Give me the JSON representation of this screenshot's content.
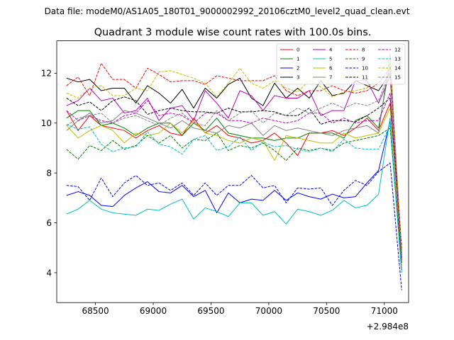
{
  "figure": {
    "suptitle": "Data file: modeM0/AS1A05_180T01_9000002992_20106cztM0_level2_quad_clean.evt",
    "title": "Quadrant 3 module wise count rates with 100.0s bins."
  },
  "chart_data": {
    "type": "line",
    "title": "Quadrant 3 module wise count rates with 100.0s bins.",
    "xlabel": "",
    "ylabel": "",
    "x_offset_label": "+2.984e8",
    "xlim": [
      68165,
      71210
    ],
    "ylim": [
      2.8,
      13.3
    ],
    "xticks": [
      68500,
      69000,
      69500,
      70000,
      70500,
      71000
    ],
    "yticks": [
      4,
      6,
      8,
      10,
      12
    ],
    "grid": false,
    "legend_position": "top-right",
    "legend_columns": 4,
    "x": [
      68250,
      68350,
      68450,
      68550,
      68650,
      68750,
      68850,
      68950,
      69050,
      69150,
      69250,
      69350,
      69450,
      69550,
      69650,
      69750,
      69850,
      69950,
      70050,
      70150,
      70250,
      70350,
      70450,
      70550,
      70650,
      70750,
      70850,
      70950,
      71050,
      71150
    ],
    "series": [
      {
        "name": "0",
        "color": "#ff0000",
        "dash": "solid",
        "values": [
          10.5,
          9.7,
          10.3,
          9.9,
          9.8,
          9.7,
          9.4,
          9.7,
          9.9,
          9.6,
          9.5,
          10.2,
          9.6,
          9.9,
          9.5,
          9.4,
          9.2,
          9.3,
          9.6,
          9.2,
          8.7,
          9.6,
          9.6,
          9.7,
          9.5,
          9.8,
          10.2,
          9.7,
          10.8,
          4.5
        ]
      },
      {
        "name": "1",
        "color": "#008000",
        "dash": "solid",
        "values": [
          10.2,
          10.5,
          10.5,
          9.9,
          10.0,
          9.8,
          9.5,
          9.8,
          10.0,
          10.0,
          9.5,
          10.0,
          9.7,
          10.2,
          9.6,
          9.5,
          9.4,
          9.4,
          9.3,
          9.4,
          9.4,
          9.6,
          9.6,
          9.6,
          9.4,
          10.1,
          10.3,
          9.8,
          12.4,
          4.6
        ]
      },
      {
        "name": "2",
        "color": "#0000ff",
        "dash": "solid",
        "values": [
          7.1,
          7.25,
          7.1,
          6.7,
          6.65,
          7.1,
          7.4,
          7.65,
          7.25,
          7.2,
          7.5,
          7.05,
          7.3,
          6.4,
          7.2,
          6.8,
          6.95,
          6.9,
          7.3,
          6.9,
          7.2,
          7.05,
          6.95,
          7.15,
          7.0,
          7.05,
          7.6,
          8.1,
          10.1,
          4.1
        ]
      },
      {
        "name": "3",
        "color": "#000000",
        "dash": "solid",
        "values": [
          11.8,
          11.65,
          11.75,
          11.3,
          11.4,
          11.4,
          10.8,
          11.5,
          11.2,
          10.8,
          11.35,
          10.6,
          11.4,
          11.0,
          11.55,
          11.8,
          11.0,
          10.7,
          11.6,
          11.0,
          11.4,
          11.0,
          11.7,
          11.1,
          11.2,
          11.7,
          11.5,
          11.3,
          12.0,
          4.9
        ]
      },
      {
        "name": "4",
        "color": "#bf00bf",
        "dash": "solid",
        "values": [
          10.7,
          10.9,
          11.4,
          10.9,
          11.0,
          10.4,
          10.5,
          11.0,
          10.1,
          10.6,
          10.7,
          10.1,
          11.3,
          10.8,
          10.2,
          11.3,
          11.1,
          10.5,
          11.1,
          11.0,
          11.0,
          11.3,
          10.3,
          10.5,
          10.5,
          11.7,
          11.7,
          10.8,
          11.9,
          4.7
        ]
      },
      {
        "name": "5",
        "color": "#00bfbf",
        "dash": "solid",
        "values": [
          6.35,
          6.55,
          6.9,
          6.55,
          6.4,
          6.35,
          6.3,
          6.55,
          6.5,
          6.75,
          6.95,
          6.15,
          6.6,
          6.45,
          6.25,
          6.8,
          6.8,
          6.3,
          6.45,
          5.95,
          6.55,
          6.45,
          6.3,
          6.5,
          6.9,
          6.6,
          6.7,
          7.15,
          10.2,
          4.0
        ]
      },
      {
        "name": "6",
        "color": "#bfbf00",
        "dash": "solid",
        "values": [
          9.9,
          9.4,
          9.7,
          9.9,
          9.7,
          9.2,
          9.6,
          9.5,
          9.6,
          10.0,
          9.6,
          10.1,
          9.6,
          9.5,
          9.3,
          9.2,
          9.4,
          9.3,
          8.5,
          9.5,
          9.4,
          9.3,
          9.2,
          9.2,
          9.6,
          9.4,
          9.5,
          9.6,
          10.6,
          4.8
        ]
      },
      {
        "name": "7",
        "color": "#808080",
        "dash": "solid",
        "values": [
          9.7,
          10.1,
          10.4,
          10.0,
          10.1,
          10.5,
          10.4,
          10.2,
          10.0,
          9.8,
          10.1,
          9.8,
          9.7,
          9.6,
          9.9,
          9.8,
          10.0,
          9.5,
          9.9,
          9.7,
          9.8,
          9.7,
          9.6,
          9.5,
          9.7,
          9.8,
          9.9,
          9.6,
          12.8,
          4.7
        ]
      },
      {
        "name": "8",
        "color": "#ff0000",
        "dash": "dashed",
        "values": [
          11.5,
          11.85,
          11.1,
          12.4,
          11.75,
          11.75,
          11.4,
          12.2,
          11.95,
          11.65,
          11.7,
          11.7,
          11.55,
          11.9,
          11.8,
          11.7,
          11.7,
          11.7,
          11.9,
          11.3,
          11.1,
          11.3,
          11.3,
          11.5,
          11.3,
          11.2,
          11.3,
          11.6,
          12.2,
          4.8
        ]
      },
      {
        "name": "9",
        "color": "#008000",
        "dash": "dashed",
        "values": [
          8.95,
          8.55,
          9.1,
          8.9,
          9.3,
          8.95,
          9.1,
          9.5,
          9.2,
          9.5,
          9.0,
          9.35,
          9.3,
          9.6,
          8.9,
          9.1,
          9.0,
          9.2,
          8.9,
          8.5,
          9.0,
          8.9,
          9.0,
          8.9,
          9.2,
          9.3,
          9.4,
          9.5,
          9.8,
          4.4
        ]
      },
      {
        "name": "10",
        "color": "#0000ff",
        "dash": "dashed",
        "values": [
          7.5,
          7.45,
          6.9,
          7.8,
          7.05,
          7.6,
          7.9,
          7.5,
          7.6,
          7.3,
          7.6,
          7.1,
          7.6,
          7.1,
          7.5,
          7.5,
          7.9,
          7.4,
          7.5,
          6.8,
          7.4,
          7.35,
          7.4,
          6.7,
          7.3,
          7.7,
          7.5,
          8.05,
          8.4,
          3.3
        ]
      },
      {
        "name": "11",
        "color": "#000000",
        "dash": "dashed",
        "values": [
          11.0,
          10.7,
          10.85,
          10.5,
          10.9,
          11.05,
          10.9,
          10.35,
          10.5,
          10.6,
          10.5,
          10.45,
          10.45,
          10.4,
          10.6,
          10.45,
          10.45,
          10.5,
          10.45,
          10.3,
          10.3,
          10.6,
          9.95,
          10.1,
          10.1,
          10.05,
          10.3,
          10.6,
          11.0,
          5.0
        ]
      },
      {
        "name": "12",
        "color": "#bf00bf",
        "dash": "dashed",
        "values": [
          10.5,
          10.1,
          10.3,
          10.1,
          10.0,
          10.3,
          10.4,
          10.9,
          10.3,
          10.4,
          10.3,
          10.0,
          10.4,
          10.4,
          10.1,
          10.1,
          10.0,
          10.2,
          10.1,
          10.0,
          10.1,
          10.4,
          10.4,
          10.0,
          10.2,
          10.0,
          10.1,
          10.1,
          11.2,
          4.6
        ]
      },
      {
        "name": "13",
        "color": "#00bfbf",
        "dash": "dashed",
        "values": [
          9.95,
          9.75,
          9.85,
          9.15,
          8.85,
          9.0,
          9.05,
          9.65,
          9.15,
          9.05,
          8.75,
          9.35,
          9.5,
          8.9,
          9.05,
          9.45,
          8.9,
          9.25,
          9.05,
          9.1,
          8.95,
          8.85,
          9.0,
          8.85,
          9.35,
          9.0,
          8.95,
          8.95,
          9.9,
          4.0
        ]
      },
      {
        "name": "14",
        "color": "#bfbf00",
        "dash": "dashed",
        "values": [
          11.2,
          11.0,
          11.4,
          11.5,
          11.1,
          11.1,
          11.4,
          11.3,
          12.05,
          12.1,
          11.95,
          11.8,
          11.6,
          11.05,
          11.6,
          12.2,
          11.6,
          11.4,
          11.7,
          11.4,
          11.25,
          11.7,
          11.45,
          11.05,
          11.25,
          11.3,
          11.4,
          11.9,
          12.6,
          4.9
        ]
      },
      {
        "name": "15",
        "color": "#808080",
        "dash": "dashed",
        "values": [
          9.9,
          10.2,
          10.3,
          10.4,
          10.0,
          10.2,
          10.3,
          10.1,
          9.9,
          10.2,
          10.4,
          10.0,
          9.9,
          10.5,
          10.1,
          10.4,
          10.5,
          10.0,
          10.4,
          10.3,
          10.6,
          10.4,
          10.6,
          10.8,
          10.6,
          10.8,
          10.7,
          10.9,
          12.1,
          4.7
        ]
      }
    ]
  }
}
